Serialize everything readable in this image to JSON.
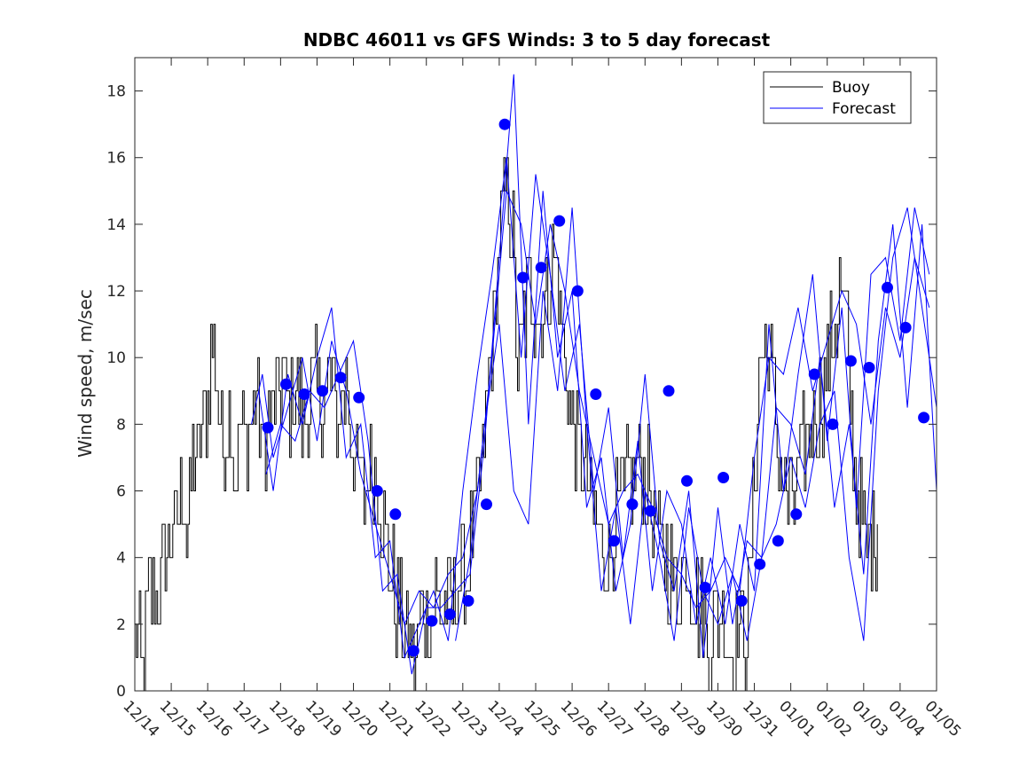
{
  "chart_data": {
    "type": "line",
    "title": "NDBC 46011 vs GFS Winds: 3 to 5 day forecast",
    "xlabel": "",
    "ylabel": "Wind speed, m/sec",
    "xlim": [
      0,
      22
    ],
    "ylim": [
      0,
      19
    ],
    "x_tick_labels": [
      "12/14",
      "12/15",
      "12/16",
      "12/17",
      "12/18",
      "12/19",
      "12/20",
      "12/21",
      "12/22",
      "12/23",
      "12/24",
      "12/25",
      "12/26",
      "12/27",
      "12/28",
      "12/29",
      "12/30",
      "12/31",
      "01/01",
      "01/02",
      "01/03",
      "01/04",
      "01/05"
    ],
    "y_ticks": [
      0,
      2,
      4,
      6,
      8,
      10,
      12,
      14,
      16,
      18
    ],
    "y_tick_labels": [
      "0",
      "2",
      "4",
      "6",
      "8",
      "10",
      "12",
      "14",
      "16",
      "18"
    ],
    "legend": {
      "position": "top-right",
      "entries": [
        {
          "label": "Buoy",
          "color": "#000000"
        },
        {
          "label": "Forecast",
          "color": "#0000ff"
        }
      ]
    },
    "colors": {
      "buoy": "#000000",
      "forecast": "#0000ff",
      "markers": "#0000ff"
    },
    "buoy_anchors": [
      [
        0.0,
        2.0
      ],
      [
        0.05,
        1.0
      ],
      [
        0.12,
        2.0
      ],
      [
        0.2,
        0.0
      ],
      [
        0.3,
        1.5
      ],
      [
        0.4,
        3.0
      ],
      [
        0.55,
        2.5
      ],
      [
        0.7,
        3.0
      ],
      [
        0.85,
        4.0
      ],
      [
        1.0,
        5.0
      ],
      [
        1.15,
        5.0
      ],
      [
        1.3,
        6.0
      ],
      [
        1.45,
        4.5
      ],
      [
        1.6,
        7.0
      ],
      [
        1.75,
        7.0
      ],
      [
        1.9,
        8.0
      ],
      [
        2.0,
        9.0
      ],
      [
        2.1,
        10.5
      ],
      [
        2.2,
        10.0
      ],
      [
        2.3,
        8.0
      ],
      [
        2.45,
        7.5
      ],
      [
        2.6,
        8.5
      ],
      [
        2.75,
        6.0
      ],
      [
        2.9,
        8.0
      ],
      [
        3.05,
        7.0
      ],
      [
        3.2,
        8.0
      ],
      [
        3.35,
        9.0
      ],
      [
        3.5,
        7.0
      ],
      [
        3.65,
        8.0
      ],
      [
        3.8,
        8.5
      ],
      [
        3.95,
        9.0
      ],
      [
        4.05,
        9.5
      ],
      [
        4.2,
        8.5
      ],
      [
        4.35,
        9.0
      ],
      [
        4.5,
        8.5
      ],
      [
        4.65,
        8.0
      ],
      [
        4.8,
        9.0
      ],
      [
        4.95,
        9.0
      ],
      [
        5.1,
        8.5
      ],
      [
        5.25,
        9.0
      ],
      [
        5.4,
        9.5
      ],
      [
        5.55,
        8.0
      ],
      [
        5.7,
        9.0
      ],
      [
        5.85,
        9.0
      ],
      [
        6.0,
        7.0
      ],
      [
        6.15,
        6.5
      ],
      [
        6.3,
        6.0
      ],
      [
        6.45,
        7.0
      ],
      [
        6.6,
        6.5
      ],
      [
        6.75,
        5.5
      ],
      [
        6.9,
        4.0
      ],
      [
        7.05,
        3.5
      ],
      [
        7.2,
        2.5
      ],
      [
        7.35,
        2.0
      ],
      [
        7.5,
        1.5
      ],
      [
        7.65,
        1.0
      ],
      [
        7.8,
        2.0
      ],
      [
        7.95,
        2.5
      ],
      [
        8.1,
        2.0
      ],
      [
        8.25,
        3.0
      ],
      [
        8.4,
        2.5
      ],
      [
        8.55,
        3.0
      ],
      [
        8.7,
        2.5
      ],
      [
        8.85,
        3.5
      ],
      [
        9.0,
        3.0
      ],
      [
        9.15,
        4.0
      ],
      [
        9.3,
        5.0
      ],
      [
        9.45,
        6.0
      ],
      [
        9.6,
        8.0
      ],
      [
        9.75,
        10.0
      ],
      [
        9.9,
        12.0
      ],
      [
        10.05,
        14.0
      ],
      [
        10.2,
        15.5
      ],
      [
        10.35,
        14.0
      ],
      [
        10.5,
        10.0
      ],
      [
        10.65,
        11.0
      ],
      [
        10.8,
        12.0
      ],
      [
        10.95,
        11.5
      ],
      [
        11.1,
        11.0
      ],
      [
        11.25,
        12.0
      ],
      [
        11.4,
        12.5
      ],
      [
        11.55,
        13.0
      ],
      [
        11.7,
        11.0
      ],
      [
        11.85,
        9.0
      ],
      [
        12.0,
        8.0
      ],
      [
        12.15,
        7.5
      ],
      [
        12.3,
        7.0
      ],
      [
        12.45,
        6.0
      ],
      [
        12.6,
        5.0
      ],
      [
        12.75,
        4.5
      ],
      [
        12.9,
        4.0
      ],
      [
        13.05,
        4.5
      ],
      [
        13.2,
        5.0
      ],
      [
        13.35,
        5.5
      ],
      [
        13.5,
        6.0
      ],
      [
        13.65,
        6.5
      ],
      [
        13.8,
        7.0
      ],
      [
        13.95,
        6.5
      ],
      [
        14.1,
        6.0
      ],
      [
        14.25,
        5.0
      ],
      [
        14.4,
        4.5
      ],
      [
        14.55,
        4.0
      ],
      [
        14.7,
        3.5
      ],
      [
        14.85,
        3.0
      ],
      [
        15.0,
        3.5
      ],
      [
        15.15,
        4.0
      ],
      [
        15.3,
        3.0
      ],
      [
        15.45,
        2.5
      ],
      [
        15.6,
        2.0
      ],
      [
        15.75,
        1.5
      ],
      [
        15.9,
        2.0
      ],
      [
        16.05,
        2.5
      ],
      [
        16.2,
        2.0
      ],
      [
        16.35,
        1.0
      ],
      [
        16.5,
        2.0
      ],
      [
        16.65,
        1.5
      ],
      [
        16.8,
        2.0
      ],
      [
        16.95,
        5.0
      ],
      [
        17.1,
        9.0
      ],
      [
        17.25,
        10.5
      ],
      [
        17.4,
        10.0
      ],
      [
        17.55,
        8.5
      ],
      [
        17.7,
        6.5
      ],
      [
        17.85,
        6.0
      ],
      [
        18.0,
        5.5
      ],
      [
        18.15,
        6.0
      ],
      [
        18.3,
        7.0
      ],
      [
        18.45,
        7.5
      ],
      [
        18.6,
        8.0
      ],
      [
        18.75,
        8.5
      ],
      [
        18.9,
        9.0
      ],
      [
        19.05,
        10.0
      ],
      [
        19.2,
        11.0
      ],
      [
        19.35,
        12.0
      ],
      [
        19.5,
        11.0
      ],
      [
        19.65,
        8.0
      ],
      [
        19.8,
        6.0
      ],
      [
        19.95,
        5.0
      ],
      [
        20.1,
        4.0
      ],
      [
        20.25,
        5.0
      ],
      [
        20.4,
        5.0
      ]
    ],
    "forecast_runs": [
      [
        [
          3.2,
          8.0
        ],
        [
          3.5,
          9.5
        ],
        [
          3.8,
          7.0
        ],
        [
          4.2,
          8.5
        ],
        [
          4.6,
          10.0
        ],
        [
          5.0,
          7.5
        ],
        [
          5.4,
          10.5
        ],
        [
          5.8,
          9.0
        ],
        [
          6.2,
          6.5
        ],
        [
          6.6,
          5.0
        ],
        [
          7.0,
          3.5
        ],
        [
          7.4,
          2.0
        ],
        [
          7.8,
          3.0
        ],
        [
          8.2,
          2.5
        ],
        [
          8.6,
          3.5
        ],
        [
          9.0,
          4.0
        ],
        [
          9.4,
          6.0
        ],
        [
          9.8,
          10.0
        ],
        [
          10.2,
          15.0
        ],
        [
          10.6,
          14.0
        ],
        [
          11.0,
          11.0
        ],
        [
          11.4,
          14.0
        ],
        [
          11.8,
          12.0
        ],
        [
          12.2,
          9.0
        ],
        [
          12.6,
          7.0
        ],
        [
          13.0,
          5.0
        ],
        [
          13.4,
          6.0
        ],
        [
          13.8,
          6.5
        ],
        [
          14.2,
          5.5
        ],
        [
          14.6,
          4.0
        ],
        [
          15.0,
          3.5
        ],
        [
          15.4,
          2.5
        ],
        [
          15.8,
          3.0
        ],
        [
          16.2,
          4.0
        ],
        [
          16.6,
          3.0
        ],
        [
          17.0,
          7.0
        ],
        [
          17.4,
          10.0
        ],
        [
          17.8,
          9.5
        ],
        [
          18.2,
          11.5
        ],
        [
          18.6,
          9.0
        ],
        [
          19.0,
          10.5
        ],
        [
          19.4,
          12.0
        ],
        [
          19.8,
          11.0
        ],
        [
          20.2,
          8.0
        ],
        [
          20.6,
          11.5
        ],
        [
          21.0,
          10.0
        ],
        [
          21.4,
          13.0
        ],
        [
          21.8,
          11.5
        ]
      ],
      [
        [
          3.4,
          9.0
        ],
        [
          3.8,
          6.0
        ],
        [
          4.2,
          9.5
        ],
        [
          4.6,
          8.0
        ],
        [
          5.0,
          10.0
        ],
        [
          5.4,
          11.5
        ],
        [
          5.8,
          7.0
        ],
        [
          6.2,
          8.0
        ],
        [
          6.6,
          4.0
        ],
        [
          7.0,
          4.5
        ],
        [
          7.4,
          1.0
        ],
        [
          7.8,
          2.0
        ],
        [
          8.2,
          3.0
        ],
        [
          8.6,
          1.5
        ],
        [
          9.0,
          6.0
        ],
        [
          9.4,
          9.5
        ],
        [
          9.8,
          12.5
        ],
        [
          10.2,
          16.0
        ],
        [
          10.6,
          10.0
        ],
        [
          11.0,
          15.5
        ],
        [
          11.4,
          12.5
        ],
        [
          11.8,
          9.0
        ],
        [
          12.2,
          11.0
        ],
        [
          12.6,
          6.0
        ],
        [
          13.0,
          8.5
        ],
        [
          13.4,
          4.0
        ],
        [
          13.8,
          7.5
        ],
        [
          14.2,
          3.0
        ],
        [
          14.6,
          6.0
        ],
        [
          15.0,
          5.0
        ],
        [
          15.4,
          2.0
        ],
        [
          15.8,
          4.0
        ],
        [
          16.2,
          2.0
        ],
        [
          16.6,
          5.0
        ],
        [
          17.0,
          3.0
        ],
        [
          17.4,
          11.0
        ],
        [
          17.8,
          6.0
        ],
        [
          18.2,
          9.5
        ],
        [
          18.6,
          12.5
        ],
        [
          19.0,
          7.5
        ],
        [
          19.4,
          11.5
        ],
        [
          19.8,
          5.5
        ],
        [
          20.2,
          12.5
        ],
        [
          20.6,
          13.0
        ],
        [
          21.0,
          10.5
        ],
        [
          21.4,
          14.5
        ],
        [
          21.8,
          12.5
        ]
      ],
      [
        [
          3.6,
          6.5
        ],
        [
          4.0,
          8.0
        ],
        [
          4.4,
          7.5
        ],
        [
          4.8,
          9.0
        ],
        [
          5.2,
          8.5
        ],
        [
          5.6,
          9.5
        ],
        [
          6.0,
          10.5
        ],
        [
          6.4,
          7.5
        ],
        [
          6.8,
          3.0
        ],
        [
          7.2,
          3.5
        ],
        [
          7.6,
          0.5
        ],
        [
          8.0,
          2.5
        ],
        [
          8.4,
          2.5
        ],
        [
          8.8,
          3.0
        ],
        [
          9.2,
          3.5
        ],
        [
          9.6,
          7.5
        ],
        [
          10.0,
          13.0
        ],
        [
          10.4,
          18.5
        ],
        [
          10.8,
          8.0
        ],
        [
          11.2,
          15.0
        ],
        [
          11.6,
          10.0
        ],
        [
          12.0,
          12.0
        ],
        [
          12.4,
          5.5
        ],
        [
          12.8,
          7.0
        ],
        [
          13.2,
          3.0
        ],
        [
          13.6,
          5.0
        ],
        [
          14.0,
          9.5
        ],
        [
          14.4,
          4.5
        ],
        [
          14.8,
          3.0
        ],
        [
          15.2,
          6.0
        ],
        [
          15.6,
          1.0
        ],
        [
          16.0,
          5.5
        ],
        [
          16.4,
          2.0
        ],
        [
          16.8,
          4.5
        ],
        [
          17.2,
          4.0
        ],
        [
          17.6,
          8.5
        ],
        [
          18.0,
          8.0
        ],
        [
          18.4,
          6.5
        ],
        [
          18.8,
          10.0
        ],
        [
          19.2,
          5.5
        ],
        [
          19.6,
          8.0
        ],
        [
          20.0,
          3.5
        ],
        [
          20.4,
          10.5
        ],
        [
          20.8,
          14.0
        ],
        [
          21.2,
          8.5
        ],
        [
          21.6,
          14.0
        ],
        [
          22.0,
          6.0
        ]
      ],
      [
        [
          8.8,
          1.5
        ],
        [
          9.2,
          4.0
        ],
        [
          9.6,
          8.0
        ],
        [
          10.0,
          11.0
        ],
        [
          10.4,
          6.0
        ],
        [
          10.8,
          5.0
        ],
        [
          11.2,
          12.0
        ],
        [
          11.6,
          9.0
        ],
        [
          12.0,
          14.5
        ],
        [
          12.4,
          8.0
        ],
        [
          12.8,
          3.0
        ],
        [
          13.2,
          5.5
        ],
        [
          13.6,
          2.0
        ],
        [
          14.0,
          6.0
        ],
        [
          14.4,
          4.0
        ],
        [
          14.8,
          1.5
        ],
        [
          15.2,
          5.5
        ],
        [
          15.6,
          3.0
        ],
        [
          16.0,
          2.0
        ],
        [
          16.4,
          3.5
        ],
        [
          16.8,
          1.5
        ],
        [
          17.2,
          4.0
        ],
        [
          17.6,
          5.0
        ],
        [
          18.0,
          7.0
        ],
        [
          18.4,
          5.5
        ],
        [
          18.8,
          8.0
        ],
        [
          19.2,
          9.0
        ],
        [
          19.6,
          4.0
        ],
        [
          20.0,
          1.5
        ],
        [
          20.4,
          9.0
        ],
        [
          20.8,
          13.0
        ],
        [
          21.2,
          14.5
        ],
        [
          21.6,
          11.5
        ],
        [
          22.0,
          8.5
        ]
      ]
    ],
    "markers": [
      {
        "x": 3.65,
        "y": 7.9
      },
      {
        "x": 4.15,
        "y": 9.2
      },
      {
        "x": 4.65,
        "y": 8.9
      },
      {
        "x": 5.15,
        "y": 9.0
      },
      {
        "x": 5.65,
        "y": 9.4
      },
      {
        "x": 6.15,
        "y": 8.8
      },
      {
        "x": 6.65,
        "y": 6.0
      },
      {
        "x": 7.15,
        "y": 5.3
      },
      {
        "x": 7.65,
        "y": 1.2
      },
      {
        "x": 8.15,
        "y": 2.1
      },
      {
        "x": 8.65,
        "y": 2.3
      },
      {
        "x": 9.15,
        "y": 2.7
      },
      {
        "x": 9.65,
        "y": 5.6
      },
      {
        "x": 10.15,
        "y": 17.0
      },
      {
        "x": 10.65,
        "y": 12.4
      },
      {
        "x": 11.15,
        "y": 12.7
      },
      {
        "x": 11.65,
        "y": 14.1
      },
      {
        "x": 12.15,
        "y": 12.0
      },
      {
        "x": 12.65,
        "y": 8.9
      },
      {
        "x": 13.15,
        "y": 4.5
      },
      {
        "x": 13.65,
        "y": 5.6
      },
      {
        "x": 14.15,
        "y": 5.4
      },
      {
        "x": 14.65,
        "y": 9.0
      },
      {
        "x": 15.15,
        "y": 6.3
      },
      {
        "x": 15.65,
        "y": 3.1
      },
      {
        "x": 16.15,
        "y": 6.4
      },
      {
        "x": 16.65,
        "y": 2.7
      },
      {
        "x": 17.15,
        "y": 3.8
      },
      {
        "x": 17.65,
        "y": 4.5
      },
      {
        "x": 18.15,
        "y": 5.3
      },
      {
        "x": 18.65,
        "y": 9.5
      },
      {
        "x": 19.15,
        "y": 8.0
      },
      {
        "x": 19.65,
        "y": 9.9
      },
      {
        "x": 20.15,
        "y": 9.7
      },
      {
        "x": 20.65,
        "y": 12.1
      },
      {
        "x": 21.15,
        "y": 10.9
      },
      {
        "x": 21.65,
        "y": 8.2
      }
    ]
  }
}
